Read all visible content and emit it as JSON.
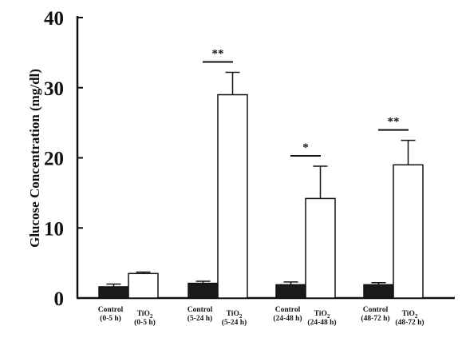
{
  "chart_data": {
    "type": "bar",
    "ylabel": "Glucose Concentration (mg/dl)",
    "ylim": [
      0,
      40
    ],
    "yticks": [
      "0",
      "10",
      "20",
      "30",
      "40"
    ],
    "colors": {
      "control": "#1a1a1a",
      "tio2": "#ffffff"
    },
    "groups": [
      {
        "bars": [
          {
            "label_lines": [
              "Control",
              "(0-5 h)"
            ],
            "value": 1.6,
            "error": 0.4,
            "kind": "control"
          },
          {
            "label_lines": [
              "TiO2",
              "(0-5 h)"
            ],
            "value": 3.5,
            "error": 0.2,
            "kind": "tio2"
          }
        ],
        "significance": ""
      },
      {
        "bars": [
          {
            "label_lines": [
              "Control",
              "(5-24 h)"
            ],
            "value": 2.1,
            "error": 0.3,
            "kind": "control"
          },
          {
            "label_lines": [
              "TiO2",
              "(5-24 h)"
            ],
            "value": 29.0,
            "error": 3.2,
            "kind": "tio2"
          }
        ],
        "significance": "**"
      },
      {
        "bars": [
          {
            "label_lines": [
              "Control",
              "(24-48 h)"
            ],
            "value": 1.9,
            "error": 0.4,
            "kind": "control"
          },
          {
            "label_lines": [
              "TiO2",
              "(24-48 h)"
            ],
            "value": 14.2,
            "error": 4.6,
            "kind": "tio2"
          }
        ],
        "significance": "*"
      },
      {
        "bars": [
          {
            "label_lines": [
              "Control",
              "(48-72 h)"
            ],
            "value": 1.9,
            "error": 0.3,
            "kind": "control"
          },
          {
            "label_lines": [
              "TiO2",
              "(48-72 h)"
            ],
            "value": 19.0,
            "error": 3.5,
            "kind": "tio2"
          }
        ],
        "significance": "**"
      }
    ]
  }
}
